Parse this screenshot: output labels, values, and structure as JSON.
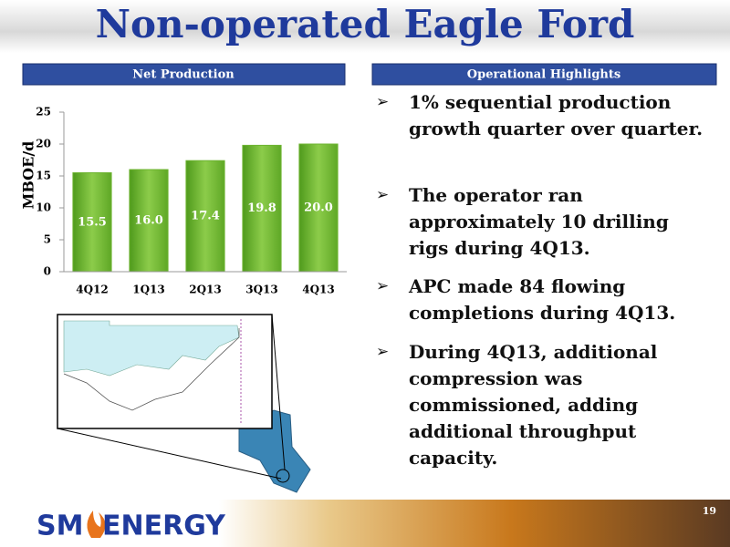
{
  "slide": {
    "title": "Non-operated Eagle Ford",
    "right_header": "Operational Highlights",
    "bullets": [
      "1% sequential production growth quarter over quarter.",
      "The operator ran approximately 10 drilling rigs during 4Q13.",
      "APC made 84 flowing completions during 4Q13.",
      "During 4Q13, additional compression was commissioned, adding additional throughput capacity."
    ],
    "page_number": "19",
    "logo_left": "SM",
    "logo_right": "ENERGY"
  },
  "chart_data": {
    "type": "bar",
    "title": "Net Production",
    "ylabel": "MBOE/d",
    "categories": [
      "4Q12",
      "1Q13",
      "2Q13",
      "3Q13",
      "4Q13"
    ],
    "values": [
      15.5,
      16,
      17.4,
      19.8,
      20
    ],
    "value_labels": [
      "15.5",
      "16.0",
      "17.4",
      "19.8",
      "20.0"
    ],
    "color": "#6cb32f",
    "ylim": [
      0,
      25
    ],
    "yticks": [
      0,
      5,
      10,
      15,
      20,
      25
    ],
    "grid": false
  }
}
